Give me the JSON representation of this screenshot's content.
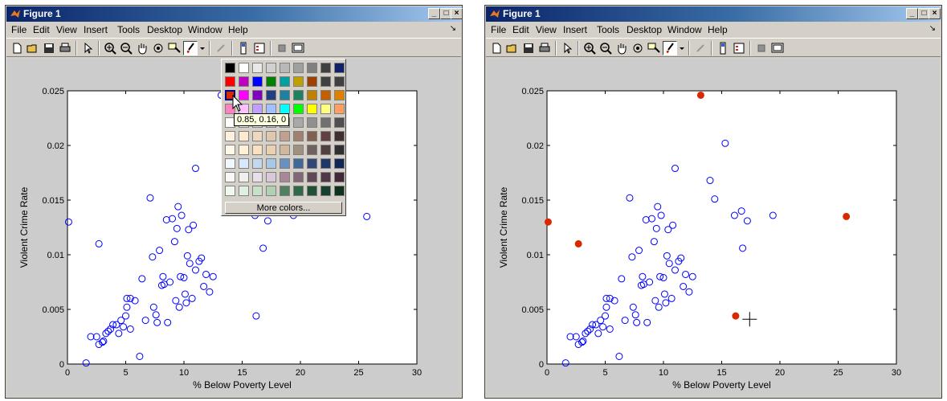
{
  "windows": [
    {
      "title": "Figure 1",
      "menu": [
        "File",
        "Edit",
        "View",
        "Insert",
        "Tools",
        "Desktop",
        "Window",
        "Help"
      ],
      "titlebar_buttons": [
        "_",
        "□",
        "×"
      ]
    },
    {
      "title": "Figure 1",
      "menu": [
        "File",
        "Edit",
        "View",
        "Insert",
        "Tools",
        "Desktop",
        "Window",
        "Help"
      ],
      "titlebar_buttons": [
        "_",
        "□",
        "×"
      ]
    }
  ],
  "color_palette": {
    "rows": [
      [
        "#000000",
        "#ffffff",
        "#e8e8e8",
        "#d0d0d0",
        "#b8b8b8",
        "#a0a0a0",
        "#808080",
        "#404040",
        "#10206a"
      ],
      [
        "#ff0000",
        "#c000c0",
        "#0000ff",
        "#008000",
        "#00a0a0",
        "#c0a000",
        "#a04000",
        "#404040",
        "#404040"
      ],
      [
        "#d92900",
        "#ff00ff",
        "#8000c0",
        "#204080",
        "#2080a0",
        "#208060",
        "#c08000",
        "#c06000",
        "#e08000"
      ],
      [
        "#ff80c0",
        "#ffc0ff",
        "#c0a0ff",
        "#a0c0ff",
        "#00ffff",
        "#00ff00",
        "#ffff00",
        "#ffff80",
        "#ffa060"
      ],
      [
        "#ffffff",
        "#ffffff",
        "#f0f0f0",
        "#d8d8d8",
        "#c0c0c0",
        "#a8a8a8",
        "#909090",
        "#707070",
        "#505050"
      ],
      [
        "#fff0e0",
        "#ffe8d0",
        "#f0d8c0",
        "#e0c8b0",
        "#c0a090",
        "#a08070",
        "#806050",
        "#604040",
        "#403030"
      ],
      [
        "#fff8e8",
        "#fff0d8",
        "#f8e0c0",
        "#e8d0b0",
        "#d0b8a0",
        "#a09080",
        "#706060",
        "#504040",
        "#303030"
      ],
      [
        "#f0f8ff",
        "#d8e8ff",
        "#c0d8f0",
        "#a8c8e8",
        "#6890c0",
        "#406898",
        "#304878",
        "#203868",
        "#102858"
      ],
      [
        "#f8f8f8",
        "#f0f0f0",
        "#e8e0e8",
        "#d8c8d8",
        "#a88898",
        "#806878",
        "#604858",
        "#503848",
        "#402838"
      ],
      [
        "#f0f8f0",
        "#e0f0e0",
        "#c8e0c8",
        "#b0d0b0",
        "#508060",
        "#306848",
        "#205038",
        "#184030",
        "#103020"
      ]
    ],
    "more_label": "More colors...",
    "tooltip": "0.85, 0.16, 0"
  },
  "chart_data": [
    {
      "type": "scatter",
      "title": "",
      "xlabel": "% Below Poverty Level",
      "ylabel": "Violent Crime Rate",
      "xlim": [
        0,
        30
      ],
      "ylim": [
        0,
        0.025
      ],
      "xticks": [
        "0",
        "5",
        "10",
        "15",
        "20",
        "25",
        "30"
      ],
      "yticks": [
        "0",
        "0.005",
        "0.01",
        "0.015",
        "0.02",
        "0.025"
      ],
      "grid": false,
      "marker_color": "#0000ff",
      "highlight_color": "#d92900",
      "points": [
        [
          0.1,
          0.013
        ],
        [
          2.7,
          0.011
        ],
        [
          1.6,
          0.0001
        ],
        [
          2,
          0.0025
        ],
        [
          2.5,
          0.0025
        ],
        [
          2.7,
          0.0018
        ],
        [
          3,
          0.002
        ],
        [
          3.1,
          0.0021
        ],
        [
          3.3,
          0.0028
        ],
        [
          3.5,
          0.003
        ],
        [
          3.7,
          0.0032
        ],
        [
          3.9,
          0.0036
        ],
        [
          4.2,
          0.0036
        ],
        [
          4.4,
          0.0028
        ],
        [
          4.6,
          0.004
        ],
        [
          4.8,
          0.0034
        ],
        [
          5,
          0.0044
        ],
        [
          5.1,
          0.0052
        ],
        [
          5.1,
          0.006
        ],
        [
          5.4,
          0.006
        ],
        [
          5.4,
          0.0032
        ],
        [
          5.8,
          0.0058
        ],
        [
          6.2,
          0.0007
        ],
        [
          6.4,
          0.0078
        ],
        [
          6.7,
          0.004
        ],
        [
          7.1,
          0.0152
        ],
        [
          7.3,
          0.0098
        ],
        [
          7.4,
          0.0052
        ],
        [
          7.6,
          0.0045
        ],
        [
          7.7,
          0.0038
        ],
        [
          7.9,
          0.0104
        ],
        [
          8.1,
          0.0072
        ],
        [
          8.2,
          0.008
        ],
        [
          8.3,
          0.0073
        ],
        [
          8.5,
          0.0132
        ],
        [
          8.6,
          0.0038
        ],
        [
          8.8,
          0.0075
        ],
        [
          9.0,
          0.0133
        ],
        [
          9.2,
          0.0112
        ],
        [
          9.3,
          0.0058
        ],
        [
          9.4,
          0.0124
        ],
        [
          9.5,
          0.0144
        ],
        [
          9.6,
          0.0052
        ],
        [
          9.7,
          0.008
        ],
        [
          9.8,
          0.0136
        ],
        [
          10.0,
          0.0079
        ],
        [
          10.1,
          0.0064
        ],
        [
          10.2,
          0.0056
        ],
        [
          10.3,
          0.0099
        ],
        [
          10.4,
          0.0123
        ],
        [
          10.5,
          0.0092
        ],
        [
          10.7,
          0.006
        ],
        [
          10.8,
          0.0127
        ],
        [
          11.0,
          0.0086
        ],
        [
          11.0,
          0.0179
        ],
        [
          11.3,
          0.0094
        ],
        [
          11.5,
          0.0097
        ],
        [
          11.7,
          0.0071
        ],
        [
          11.9,
          0.0082
        ],
        [
          12.2,
          0.0066
        ],
        [
          12.5,
          0.008
        ],
        [
          13.2,
          0.0246
        ],
        [
          14,
          0.0168
        ],
        [
          14.4,
          0.0151
        ],
        [
          15.3,
          0.0202
        ],
        [
          16.1,
          0.0136
        ],
        [
          16.2,
          0.0044
        ],
        [
          16.7,
          0.014
        ],
        [
          16.8,
          0.0106
        ],
        [
          17.2,
          0.0131
        ],
        [
          19.4,
          0.0136
        ],
        [
          25.7,
          0.0135
        ]
      ],
      "cursor_marker": [
        17.4,
        0.0041
      ]
    }
  ]
}
